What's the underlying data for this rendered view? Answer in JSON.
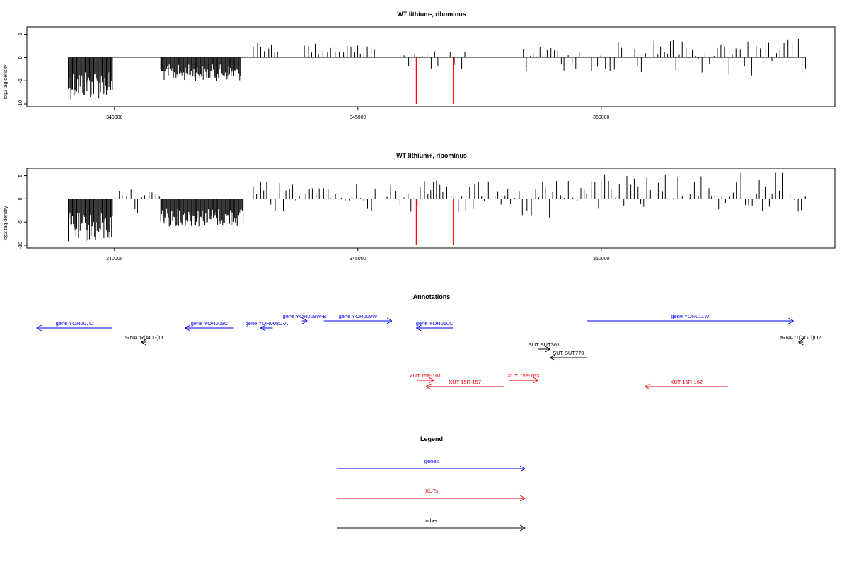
{
  "chart_data": [
    {
      "type": "bar",
      "title": "WT lithium-, ribominus",
      "xlabel": "",
      "ylabel": "log2 tag density",
      "xlim": [
        338200,
        354800
      ],
      "ylim": [
        -10,
        6
      ],
      "x_ticks": [
        340000,
        345000,
        350000
      ],
      "y_ticks": [
        5,
        0,
        -5,
        -10
      ],
      "x_tick_labels": [
        "340000",
        "345000",
        "350000"
      ],
      "y_tick_labels": [
        "5",
        "0",
        "-5",
        "-10"
      ],
      "series": [
        {
          "color": "#000000",
          "segments": [
            {
              "x_start": 339050,
              "x_end": 339970,
              "min": -9,
              "max": -2.5,
              "direction": "down"
            },
            {
              "x_start": 340950,
              "x_end": 342600,
              "min": -5,
              "max": -1.5,
              "direction": "down"
            },
            {
              "x_start": 342850,
              "x_end": 343400,
              "min": 1,
              "max": 3.7,
              "direction": "up"
            },
            {
              "x_start": 343900,
              "x_end": 345400,
              "min": 0.5,
              "max": 3.2,
              "direction": "up"
            },
            {
              "x_start": 345950,
              "x_end": 347200,
              "min": -3,
              "max": 1.5,
              "direction": "mixed"
            },
            {
              "x_start": 348400,
              "x_end": 349600,
              "min": -3.5,
              "max": 2.5,
              "direction": "mixed"
            },
            {
              "x_start": 349800,
              "x_end": 354200,
              "min": -4,
              "max": 4.2,
              "direction": "mixed"
            }
          ]
        },
        {
          "color": "#ff0000",
          "points": [
            {
              "x": 346200,
              "y": -10
            },
            {
              "x": 346960,
              "y": -10
            }
          ]
        }
      ]
    },
    {
      "type": "bar",
      "title": "WT lithium+, ribominus",
      "xlabel": "",
      "ylabel": "log2 tag density",
      "xlim": [
        338200,
        354800
      ],
      "ylim": [
        -10,
        6
      ],
      "x_ticks": [
        340000,
        345000,
        350000
      ],
      "y_ticks": [
        5,
        0,
        -5,
        -10
      ],
      "x_tick_labels": [
        "340000",
        "345000",
        "350000"
      ],
      "y_tick_labels": [
        "5",
        "0",
        "-5",
        "-10"
      ],
      "series": [
        {
          "color": "#000000",
          "segments": [
            {
              "x_start": 339050,
              "x_end": 339970,
              "min": -9.5,
              "max": -3,
              "direction": "down"
            },
            {
              "x_start": 340100,
              "x_end": 340950,
              "min": -3,
              "max": 2.2,
              "direction": "mixed"
            },
            {
              "x_start": 340950,
              "x_end": 342650,
              "min": -6,
              "max": -2,
              "direction": "down"
            },
            {
              "x_start": 342850,
              "x_end": 345400,
              "min": -3,
              "max": 3.8,
              "direction": "mixed"
            },
            {
              "x_start": 345600,
              "x_end": 347400,
              "min": -3,
              "max": 4,
              "direction": "mixed"
            },
            {
              "x_start": 347400,
              "x_end": 349700,
              "min": -4.5,
              "max": 4,
              "direction": "mixed"
            },
            {
              "x_start": 349700,
              "x_end": 354200,
              "min": -3,
              "max": 5.8,
              "direction": "mixed"
            }
          ]
        },
        {
          "color": "#ff0000",
          "points": [
            {
              "x": 346200,
              "y": -10
            },
            {
              "x": 346960,
              "y": -10
            }
          ]
        }
      ]
    }
  ],
  "annotations": {
    "title": "Annotations",
    "xlim": [
      338200,
      354800
    ],
    "colors": {
      "gene": "#0000ff",
      "xut": "#ff0000",
      "other": "#000000"
    },
    "features": [
      {
        "label": "gene YOR007C",
        "category": "gene",
        "start": 338400,
        "end": 339950,
        "strand": "-",
        "row": 1
      },
      {
        "label": "tRNA tR(ACG)O",
        "category": "other",
        "start": 340550,
        "end": 340650,
        "strand": "-",
        "row": 2
      },
      {
        "label": "gene YOR008C",
        "category": "gene",
        "start": 341450,
        "end": 342450,
        "strand": "-",
        "row": 1
      },
      {
        "label": "gene YOR008C-A",
        "category": "gene",
        "start": 343000,
        "end": 343250,
        "strand": "-",
        "row": 1
      },
      {
        "label": "gene YOR008W-B",
        "category": "gene",
        "start": 343850,
        "end": 343960,
        "strand": "+",
        "row": 0
      },
      {
        "label": "gene YOR009W",
        "category": "gene",
        "start": 344300,
        "end": 345700,
        "strand": "+",
        "row": 0
      },
      {
        "label": "gene YOR010C",
        "category": "gene",
        "start": 346200,
        "end": 346950,
        "strand": "-",
        "row": 1
      },
      {
        "label": "gene YOR011W",
        "category": "gene",
        "start": 349700,
        "end": 353950,
        "strand": "+",
        "row": 0
      },
      {
        "label": "tRNA tT(AGU)O2",
        "category": "other",
        "start": 354050,
        "end": 354150,
        "strand": "-",
        "row": 2
      },
      {
        "label": "SUT SUT361",
        "category": "other",
        "start": 348700,
        "end": 348950,
        "strand": "+",
        "row": 3
      },
      {
        "label": "SUT SUT770",
        "category": "other",
        "start": 348950,
        "end": 349700,
        "strand": "-",
        "row": 4
      },
      {
        "label": "XUT 15F-161",
        "category": "xut",
        "start": 346210,
        "end": 346560,
        "strand": "+",
        "row": 5
      },
      {
        "label": "XUT 15R-157",
        "category": "xut",
        "start": 346400,
        "end": 348000,
        "strand": "-",
        "row": 6
      },
      {
        "label": "XUT 15F-163",
        "category": "xut",
        "start": 348100,
        "end": 348700,
        "strand": "+",
        "row": 5
      },
      {
        "label": "XUT 15R-162",
        "category": "xut",
        "start": 350900,
        "end": 352600,
        "strand": "-",
        "row": 6
      }
    ]
  },
  "legend": {
    "title": "Legend",
    "items": [
      {
        "label": "genes",
        "color": "#0000ff"
      },
      {
        "label": "XUTs",
        "color": "#ff0000"
      },
      {
        "label": "other",
        "color": "#000000"
      }
    ]
  }
}
